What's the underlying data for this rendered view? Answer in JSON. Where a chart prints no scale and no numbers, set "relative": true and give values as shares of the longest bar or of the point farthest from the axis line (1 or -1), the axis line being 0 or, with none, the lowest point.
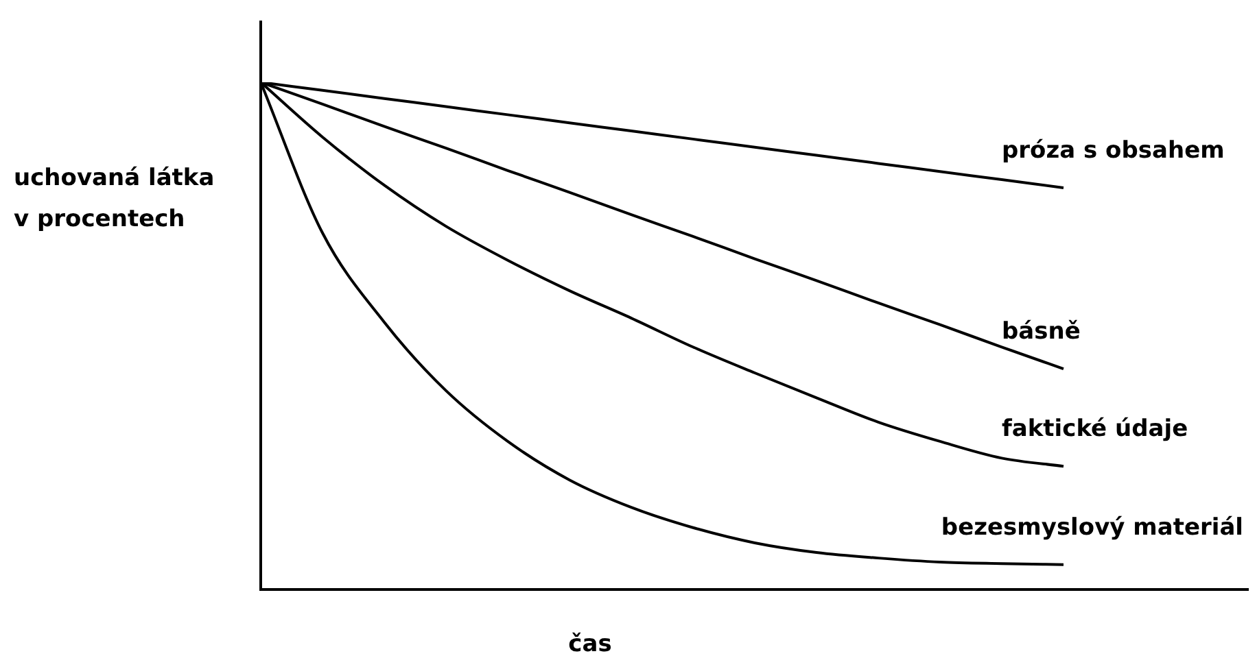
{
  "chart_data": {
    "type": "line",
    "relative": true,
    "xlabel": "čas",
    "ylabel": "uchovaná látka v procentech",
    "legend": false,
    "marker": "none",
    "line_style": "solid",
    "categories": [
      null,
      null,
      null,
      null,
      null,
      null,
      null,
      null,
      null,
      null,
      null,
      null,
      null,
      null,
      null,
      null,
      null
    ],
    "series": [
      {
        "name": "próza s obsahem",
        "color": "#000000",
        "values": [
          1,
          0.984,
          0.968,
          0.952,
          0.936,
          0.92,
          0.904,
          0.888,
          0.872,
          0.856,
          0.84,
          0.824,
          0.808,
          0.792,
          null,
          null,
          null
        ]
      },
      {
        "name": "básně",
        "color": "#000000",
        "values": [
          1,
          0.957,
          0.913,
          0.87,
          0.826,
          0.783,
          0.739,
          0.696,
          0.652,
          0.609,
          0.565,
          0.522,
          0.478,
          0.435,
          null,
          null,
          null
        ]
      },
      {
        "name": "faktické údaje",
        "color": "#000000",
        "values": [
          1,
          0.892,
          0.797,
          0.716,
          0.649,
          0.589,
          0.535,
          0.478,
          0.427,
          0.378,
          0.33,
          0.292,
          0.259,
          0.243,
          null,
          null,
          null
        ]
      },
      {
        "name": "bezesmyslový materiál",
        "color": "#000000",
        "values": [
          1,
          0.703,
          0.527,
          0.392,
          0.292,
          0.216,
          0.162,
          0.122,
          0.092,
          0.073,
          0.062,
          0.054,
          0.051,
          0.049,
          null,
          null,
          null
        ]
      }
    ]
  }
}
